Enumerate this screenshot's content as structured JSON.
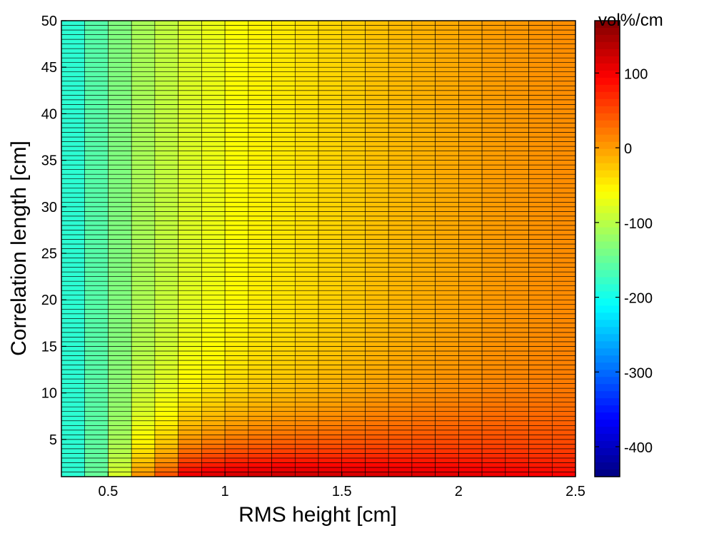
{
  "chart_data": {
    "type": "heatmap",
    "title": "",
    "xlabel": "RMS height [cm]",
    "ylabel": "Correlation length [cm]",
    "xlim": [
      0.3,
      2.5
    ],
    "ylim": [
      1,
      50
    ],
    "x_ticks": [
      0.5,
      1,
      1.5,
      2,
      2.5
    ],
    "x_tick_labels": [
      "0.5",
      "1",
      "1.5",
      "2",
      "2.5"
    ],
    "y_ticks": [
      5,
      10,
      15,
      20,
      25,
      30,
      35,
      40,
      45,
      50
    ],
    "y_tick_labels": [
      "5",
      "10",
      "15",
      "20",
      "25",
      "30",
      "35",
      "40",
      "45",
      "50"
    ],
    "x_centers": [
      0.35,
      0.45,
      0.55,
      0.65,
      0.75,
      0.85,
      0.95,
      1.05,
      1.15,
      1.25,
      1.35,
      1.45,
      1.55,
      1.65,
      1.75,
      1.85,
      1.95,
      2.05,
      2.15,
      2.25,
      2.35,
      2.45
    ],
    "y_range": [
      1,
      50
    ],
    "y_row_count": 98,
    "value_profile_at_y50": [
      -185,
      -160,
      -135,
      -110,
      -95,
      -80,
      -70,
      -60,
      -52,
      -46,
      -40,
      -34,
      -28,
      -22,
      -17,
      -12,
      -8,
      -4,
      0,
      3,
      6,
      9
    ],
    "value_profile_at_y1": [
      -185,
      -150,
      -80,
      10,
      50,
      110,
      120,
      125,
      128,
      130,
      128,
      126,
      124,
      122,
      120,
      118,
      115,
      112,
      108,
      104,
      100,
      96
    ],
    "colorbar": {
      "label": "vol%/cm",
      "range": [
        -440,
        170
      ],
      "ticks": [
        100,
        0,
        -100,
        -200,
        -300,
        -400
      ],
      "tick_labels": [
        "100",
        "0",
        "-100",
        "-200",
        "-300",
        "-400"
      ],
      "colormap": "jet"
    },
    "grid": false,
    "legend": "none"
  }
}
